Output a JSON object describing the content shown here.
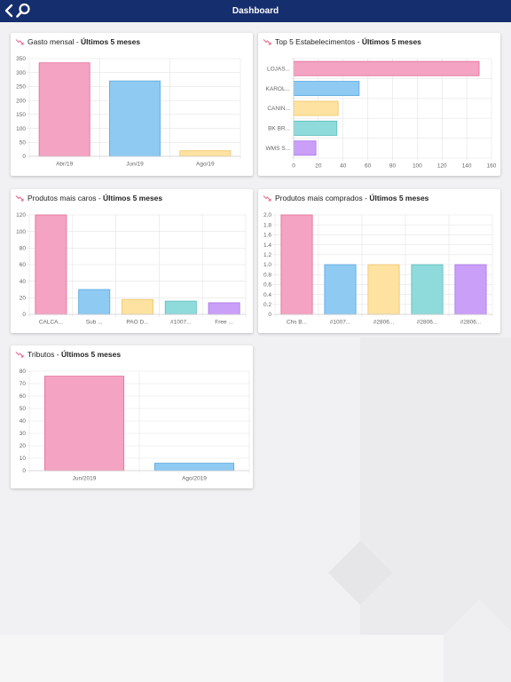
{
  "header": {
    "title": "Dashboard"
  },
  "colors": {
    "header_bg": "#152e6d",
    "trend_icon": "#e76a91",
    "palette": [
      {
        "fill": "#f4a3c2",
        "stroke": "#e46c97"
      },
      {
        "fill": "#8ecaf2",
        "stroke": "#5aa8de"
      },
      {
        "fill": "#fde2a2",
        "stroke": "#f2c463"
      },
      {
        "fill": "#8fdada",
        "stroke": "#5cbcbc"
      },
      {
        "fill": "#ca9ff8",
        "stroke": "#a774e6"
      }
    ]
  },
  "period_suffix": "Últimos 5 meses",
  "cards": [
    {
      "title": "Gasto mensal",
      "chart_data": {
        "type": "bar",
        "categories": [
          "Abr/19",
          "Jun/19",
          "Ago/19"
        ],
        "values": [
          335,
          270,
          20
        ],
        "ylim": [
          0,
          350
        ],
        "yticks": [
          0,
          50,
          100,
          150,
          200,
          250,
          300,
          350
        ],
        "grid": true
      }
    },
    {
      "title": "Top 5 Estabelecimentos",
      "chart_data": {
        "type": "bar",
        "orientation": "horizontal",
        "categories": [
          "LOJAS...",
          "KAROL...",
          "CANIN...",
          "BK BR...",
          "WMS S..."
        ],
        "values": [
          150,
          53,
          36,
          35,
          18
        ],
        "xlim": [
          0,
          160
        ],
        "xticks": [
          0,
          20,
          40,
          60,
          80,
          100,
          120,
          140,
          160
        ],
        "grid": true
      }
    },
    {
      "title": "Produtos mais caros",
      "chart_data": {
        "type": "bar",
        "categories": [
          "CALCA...",
          "Sub ...",
          "PAO D...",
          "#1007...",
          "Free ..."
        ],
        "values": [
          120,
          30,
          18,
          16,
          14
        ],
        "ylim": [
          0,
          120
        ],
        "yticks": [
          0,
          20,
          40,
          60,
          80,
          100,
          120
        ],
        "grid": true
      }
    },
    {
      "title": "Produtos mais comprados",
      "chart_data": {
        "type": "bar",
        "categories": [
          "Chs B...",
          "#1007...",
          "#2806...",
          "#2806...",
          "#2806..."
        ],
        "values": [
          2.0,
          1.0,
          1.0,
          1.0,
          1.0
        ],
        "ylim": [
          0,
          2.0
        ],
        "yticks": [
          "0",
          "0.2",
          "0.4",
          "0.6",
          "0.8",
          "1.0",
          "1.2",
          "1.4",
          "1.6",
          "1.8",
          "2.0"
        ],
        "grid": true
      }
    },
    {
      "title": "Tributos",
      "chart_data": {
        "type": "bar",
        "categories": [
          "Jun/2019",
          "Ago/2019"
        ],
        "values": [
          76,
          6
        ],
        "ylim": [
          0,
          80
        ],
        "yticks": [
          0,
          10,
          20,
          30,
          40,
          50,
          60,
          70,
          80
        ],
        "grid": true
      }
    }
  ]
}
